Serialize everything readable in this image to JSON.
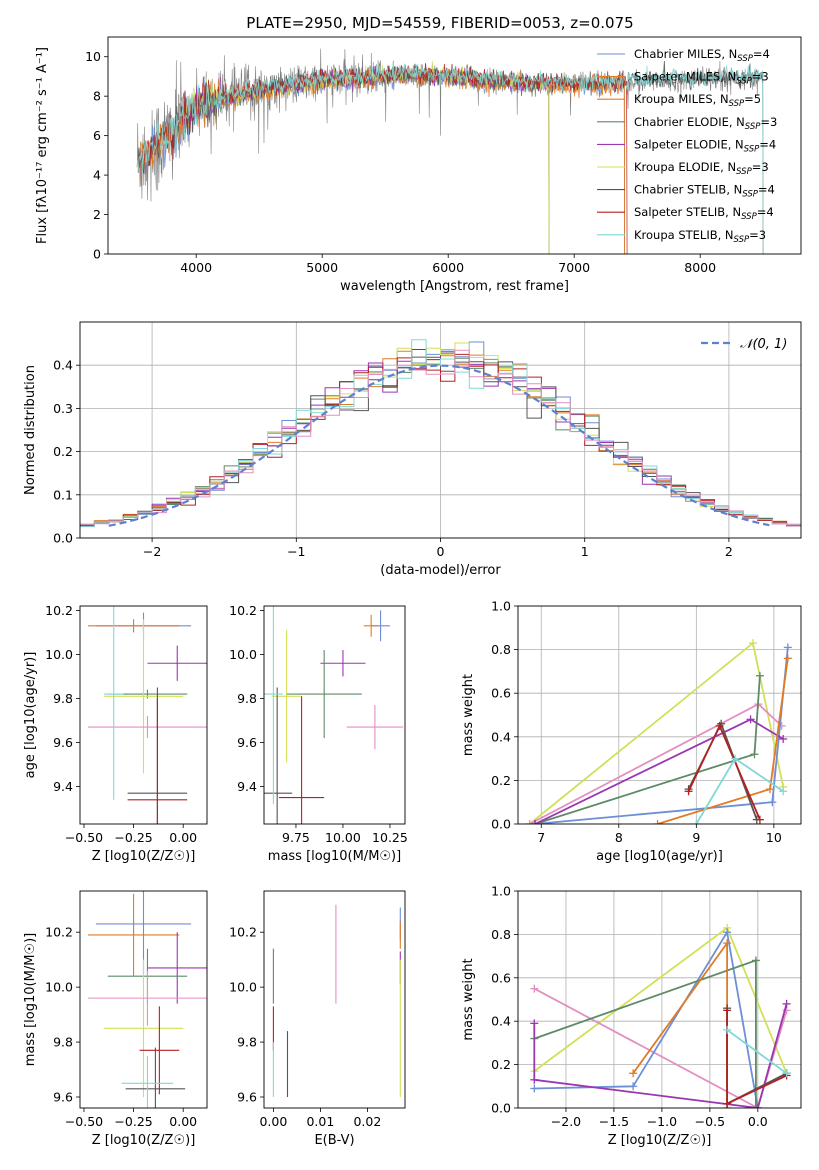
{
  "title": "PLATE=2950, MJD=54559, FIBERID=0053, z=0.075",
  "colors": {
    "Chabrier MILES": "#6d8fd6",
    "Salpeter MILES": "#e07b27",
    "Kroupa MILES": "#e07b27",
    "Chabrier ELODIE": "#5f8a66",
    "Salpeter ELODIE": "#9b36b3",
    "Kroupa ELODIE": "#d2e058",
    "Chabrier STELIB": "#555555",
    "Salpeter STELIB": "#b52121",
    "Kroupa STELIB": "#7fd9d6",
    "pink": "#e38fbf",
    "data": "#808080",
    "normal": "#5b82d2"
  },
  "chart_data": [
    {
      "id": "spectrum",
      "type": "line",
      "xlabel": "wavelength [Angstrom, rest frame]",
      "ylabel": "Flux [fλ10⁻¹⁷ erg cm⁻² s⁻¹ A⁻¹]",
      "xlim": [
        3300,
        8800
      ],
      "ylim": [
        0,
        11
      ],
      "xticks": [
        4000,
        5000,
        6000,
        7000,
        8000
      ],
      "yticks": [
        0,
        2,
        4,
        6,
        8,
        10
      ],
      "legend_position": "top-right",
      "legend": [
        {
          "name": "Chabrier MILES",
          "nssp": "4",
          "color": "#6d8fd6"
        },
        {
          "name": "Salpeter MILES",
          "nssp": "3",
          "color": "#e07b27"
        },
        {
          "name": "Kroupa MILES",
          "nssp": "5",
          "color": "#e07b27"
        },
        {
          "name": "Chabrier ELODIE",
          "nssp": "3",
          "color": "#5f8a66"
        },
        {
          "name": "Salpeter ELODIE",
          "nssp": "4",
          "color": "#9b36b3"
        },
        {
          "name": "Kroupa ELODIE",
          "nssp": "3",
          "color": "#d2e058"
        },
        {
          "name": "Chabrier STELIB",
          "nssp": "4",
          "color": "#555555"
        },
        {
          "name": "Salpeter STELIB",
          "nssp": "4",
          "color": "#b52121"
        },
        {
          "name": "Kroupa STELIB",
          "nssp": "3",
          "color": "#7fd9d6"
        }
      ],
      "continuum": {
        "x": [
          3550,
          3700,
          3800,
          3900,
          4000,
          4200,
          4500,
          4800,
          5000,
          5300,
          5600,
          6000,
          6300,
          6600,
          7000,
          7400,
          7800,
          8200,
          8500
        ],
        "y": [
          4.8,
          5.5,
          6.0,
          6.8,
          7.6,
          7.9,
          8.3,
          8.6,
          8.8,
          8.9,
          9.1,
          9.0,
          8.8,
          8.7,
          8.6,
          8.7,
          8.8,
          8.9,
          9.0
        ]
      }
    },
    {
      "id": "residuals",
      "type": "histogram",
      "xlabel": "(data-model)/error",
      "ylabel": "Normed distribution",
      "xlim": [
        -2.5,
        2.5
      ],
      "ylim": [
        0,
        0.5
      ],
      "xticks": [
        -2,
        -1,
        0,
        1,
        2
      ],
      "yticks": [
        0.0,
        0.1,
        0.2,
        0.3,
        0.4
      ],
      "bin_width": 0.1,
      "legend_position": "top-right",
      "normal_label": "𝒩(0, 1)"
    },
    {
      "id": "age-Z",
      "type": "scatter",
      "xlabel": "Z [log10(Z/Z☉)]",
      "ylabel": "age  [log10(age/yr)]",
      "xlim": [
        -0.52,
        0.12
      ],
      "ylim": [
        9.23,
        10.22
      ],
      "xticks": [
        -0.5,
        -0.25,
        0.0
      ],
      "yticks": [
        9.4,
        9.6,
        9.8,
        10.0,
        10.2
      ],
      "points": [
        {
          "x": -0.2,
          "xerr": 0.26,
          "y": 10.13,
          "yerr": 0.0,
          "color": "#6d8fd6"
        },
        {
          "x": -0.2,
          "xerr": 0.26,
          "y": 10.13,
          "yerr": 0.0,
          "color": "#e07b27"
        },
        {
          "x": -0.04,
          "xerr": 0.16,
          "y": 9.96,
          "yerr": 0.0,
          "color": "#9b36b3"
        },
        {
          "x": -0.2,
          "xerr": 0.18,
          "y": 9.82,
          "yerr": 0.0,
          "color": "#5f8a66"
        },
        {
          "x": -0.14,
          "xerr": 0.15,
          "y": 9.37,
          "yerr": 0.0,
          "color": "#555555"
        },
        {
          "x": -0.14,
          "xerr": 0.15,
          "y": 9.34,
          "yerr": 0.0,
          "color": "#b52121"
        }
      ]
    },
    {
      "id": "age-mass",
      "type": "scatter",
      "xlabel": "mass [log10(M/M☉)]",
      "ylabel": "",
      "xlim": [
        9.58,
        10.33
      ],
      "ylim": [
        9.23,
        10.22
      ],
      "xticks": [
        9.75,
        10.0,
        10.25
      ],
      "yticks": [
        9.4,
        9.6,
        9.8,
        10.0,
        10.2
      ]
    },
    {
      "id": "weight-age",
      "type": "line",
      "xlabel": "age  [log10(age/yr)]",
      "ylabel": "mass weight",
      "xlim": [
        6.7,
        10.35
      ],
      "ylim": [
        0,
        1.0
      ],
      "xticks": [
        7,
        8,
        9,
        10
      ],
      "yticks": [
        0.0,
        0.2,
        0.4,
        0.6,
        0.8,
        1.0
      ],
      "series": [
        {
          "color": "#d2e058",
          "x": [
            6.85,
            9.73,
            10.12
          ],
          "y": [
            0.0,
            0.83,
            0.17
          ]
        },
        {
          "color": "#e38fbf",
          "x": [
            6.85,
            9.8,
            10.1
          ],
          "y": [
            0.0,
            0.55,
            0.45
          ]
        },
        {
          "color": "#6d8fd6",
          "x": [
            6.92,
            9.98,
            10.18
          ],
          "y": [
            0.0,
            0.1,
            0.81
          ]
        },
        {
          "color": "#5f8a66",
          "x": [
            6.92,
            9.75,
            9.82
          ],
          "y": [
            0.0,
            0.32,
            0.68
          ]
        },
        {
          "color": "#9b36b3",
          "x": [
            6.92,
            9.7,
            10.12
          ],
          "y": [
            0.0,
            0.48,
            0.39
          ]
        },
        {
          "color": "#e07b27",
          "x": [
            8.5,
            9.95,
            10.18
          ],
          "y": [
            0.0,
            0.16,
            0.76
          ]
        },
        {
          "color": "#555555",
          "x": [
            8.9,
            9.32,
            9.78
          ],
          "y": [
            0.16,
            0.46,
            0.02
          ]
        },
        {
          "color": "#b52121",
          "x": [
            8.9,
            9.3,
            9.82
          ],
          "y": [
            0.15,
            0.45,
            0.02
          ]
        },
        {
          "color": "#7fd9d6",
          "x": [
            9.0,
            9.5,
            10.12
          ],
          "y": [
            0.0,
            0.3,
            0.15
          ]
        }
      ]
    },
    {
      "id": "mass-Z",
      "type": "scatter",
      "xlabel": "Z [log10(Z/Z☉)]",
      "ylabel": "mass [log10(M/M☉)]",
      "xlim": [
        -0.52,
        0.12
      ],
      "ylim": [
        9.56,
        10.35
      ],
      "xticks": [
        -0.5,
        -0.25,
        0.0
      ],
      "yticks": [
        9.6,
        9.8,
        10.0,
        10.2
      ]
    },
    {
      "id": "mass-EBV",
      "type": "scatter",
      "xlabel": "E(B-V)",
      "ylabel": "",
      "xlim": [
        -0.002,
        0.028
      ],
      "ylim": [
        9.56,
        10.35
      ],
      "xticks": [
        0.0,
        0.01,
        0.02
      ],
      "yticks": [
        9.6,
        9.8,
        10.0,
        10.2
      ]
    },
    {
      "id": "weight-Z",
      "type": "line",
      "xlabel": "Z [log10(Z/Z☉)]",
      "ylabel": "mass weight",
      "xlim": [
        -2.5,
        0.45
      ],
      "ylim": [
        0,
        1.0
      ],
      "xticks": [
        -2.0,
        -1.5,
        -1.0,
        -0.5,
        0.0
      ],
      "yticks": [
        0.0,
        0.2,
        0.4,
        0.6,
        0.8,
        1.0
      ],
      "series": [
        {
          "color": "#d2e058",
          "x": [
            -2.33,
            -0.32,
            0.3
          ],
          "y": [
            0.17,
            0.83,
            0.16
          ]
        },
        {
          "color": "#e38fbf",
          "x": [
            -2.33,
            0.0,
            0.3
          ],
          "y": [
            0.55,
            0.0,
            0.45
          ]
        },
        {
          "color": "#6d8fd6",
          "x": [
            -2.33,
            -1.3,
            -0.32,
            0.0
          ],
          "y": [
            0.09,
            0.1,
            0.81,
            0.0
          ]
        },
        {
          "color": "#5f8a66",
          "x": [
            -2.33,
            -0.02,
            -0.02
          ],
          "y": [
            0.32,
            0.68,
            0.0
          ]
        },
        {
          "color": "#9b36b3",
          "x": [
            -2.33,
            -2.33,
            0.0,
            0.3
          ],
          "y": [
            0.39,
            0.13,
            0.0,
            0.48
          ]
        },
        {
          "color": "#e07b27",
          "x": [
            -1.3,
            -0.32,
            -0.32
          ],
          "y": [
            0.16,
            0.76,
            0.0
          ]
        },
        {
          "color": "#555555",
          "x": [
            -0.32,
            -0.32,
            0.3
          ],
          "y": [
            0.46,
            0.02,
            0.16
          ]
        },
        {
          "color": "#b52121",
          "x": [
            -0.32,
            -0.32,
            0.3
          ],
          "y": [
            0.45,
            0.02,
            0.15
          ]
        },
        {
          "color": "#7fd9d6",
          "x": [
            -0.32,
            0.3
          ],
          "y": [
            0.36,
            0.16
          ]
        }
      ]
    }
  ]
}
